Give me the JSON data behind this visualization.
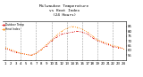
{
  "title": "Milwaukee Temperature\nvs Heat Index\n(24 Hours)",
  "title_fontsize": 3.2,
  "legend_labels": [
    "Outdoor Temp",
    "Heat Index"
  ],
  "x_hours": [
    1,
    2,
    3,
    4,
    5,
    6,
    7,
    8,
    9,
    10,
    11,
    12,
    13,
    14,
    15,
    16,
    17,
    18,
    19,
    20,
    21,
    22,
    23,
    24
  ],
  "temp": [
    62,
    60,
    58,
    57,
    56,
    55,
    57,
    61,
    65,
    70,
    74,
    77,
    78,
    79,
    80,
    79,
    77,
    73,
    70,
    68,
    66,
    64,
    63,
    62
  ],
  "heat_index": [
    63,
    61,
    59,
    57,
    56,
    55,
    57,
    61,
    66,
    71,
    76,
    80,
    83,
    85,
    84,
    82,
    79,
    75,
    71,
    69,
    67,
    65,
    64,
    62
  ],
  "ylim": [
    50,
    90
  ],
  "ytick_vals": [
    55,
    60,
    65,
    70,
    75,
    80,
    85
  ],
  "ytick_labels": [
    "55",
    "60",
    "65",
    "70",
    "75",
    "80",
    "85"
  ],
  "grid_x_positions": [
    1,
    4,
    7,
    10,
    13,
    16,
    19,
    22,
    25
  ],
  "background_color": "#ffffff",
  "line1_color": "#dd0000",
  "line2_color": "#ff8800",
  "tick_fontsize": 2.8,
  "title_color": "#000000"
}
